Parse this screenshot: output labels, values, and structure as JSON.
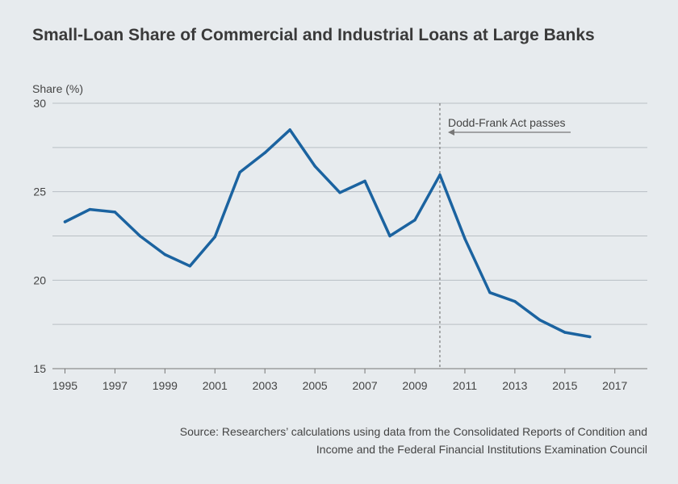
{
  "chart_data": {
    "type": "line",
    "title": "Small-Loan Share of Commercial and Industrial Loans at Large Banks",
    "ylabel": "Share (%)",
    "xlabel": "",
    "ylim": [
      15,
      30
    ],
    "xlim": [
      1994.5,
      2018.3
    ],
    "y_ticks": [
      15,
      20,
      25,
      30
    ],
    "y_gridlines": [
      15,
      17.5,
      20,
      22.5,
      25,
      27.5,
      30
    ],
    "x_ticks": [
      1995,
      1997,
      1999,
      2001,
      2003,
      2005,
      2007,
      2009,
      2011,
      2013,
      2015,
      2017
    ],
    "grid": true,
    "series": [
      {
        "color": "#1b63a0",
        "x": [
          1995,
          1996,
          1997,
          1998,
          1999,
          2000,
          2001,
          2002,
          2003,
          2004,
          2005,
          2006,
          2007,
          2008,
          2009,
          2010,
          2011,
          2012,
          2013,
          2014,
          2015,
          2016
        ],
        "values": [
          23.3,
          24.0,
          23.85,
          22.5,
          21.45,
          20.8,
          22.45,
          26.1,
          27.2,
          28.5,
          26.45,
          24.95,
          25.6,
          22.5,
          23.4,
          25.95,
          22.35,
          19.3,
          18.8,
          17.75,
          17.05,
          16.8
        ]
      }
    ],
    "annotations": [
      {
        "x": 2010,
        "text": "Dodd-Frank Act passes",
        "arrow": "left"
      }
    ]
  },
  "source_text": "Source: Researchers’ calculations using data from the Consolidated Reports of Condition and Income and the Federal Financial Institutions Examination Council",
  "colors": {
    "line": "#1b63a0",
    "grid": "#b9bfc4",
    "background": "#e7ebee",
    "annotation": "#777777"
  }
}
